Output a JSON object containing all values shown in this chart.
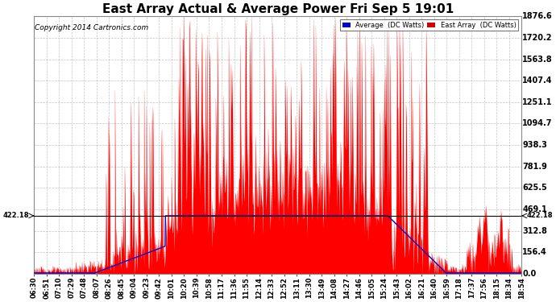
{
  "title": "East Array Actual & Average Power Fri Sep 5 19:01",
  "copyright": "Copyright 2014 Cartronics.com",
  "yticks": [
    0.0,
    156.4,
    312.8,
    469.1,
    625.5,
    781.9,
    938.3,
    1094.7,
    1251.1,
    1407.4,
    1563.8,
    1720.2,
    1876.6
  ],
  "hline_value": 422.18,
  "hline_label": "422.18",
  "ymax": 1876.6,
  "ymin": 0.0,
  "legend_average_label": "Average  (DC Watts)",
  "legend_east_label": "East Array  (DC Watts)",
  "legend_average_color": "#0000cc",
  "legend_east_color": "#cc0000",
  "background_color": "#ffffff",
  "grid_color": "#aaaaaa",
  "title_fontsize": 11,
  "copyright_fontsize": 6.5,
  "xtick_fontsize": 6.0,
  "ytick_fontsize": 7.0,
  "x_labels": [
    "06:30",
    "06:51",
    "07:10",
    "07:29",
    "07:48",
    "08:07",
    "08:26",
    "08:45",
    "09:04",
    "09:23",
    "09:42",
    "10:01",
    "10:20",
    "10:39",
    "10:58",
    "11:17",
    "11:36",
    "11:55",
    "12:14",
    "12:33",
    "12:52",
    "13:11",
    "13:30",
    "13:49",
    "14:08",
    "14:27",
    "14:46",
    "15:05",
    "15:24",
    "15:43",
    "16:02",
    "16:21",
    "16:40",
    "16:59",
    "17:18",
    "17:37",
    "17:56",
    "18:15",
    "18:34",
    "18:54"
  ]
}
